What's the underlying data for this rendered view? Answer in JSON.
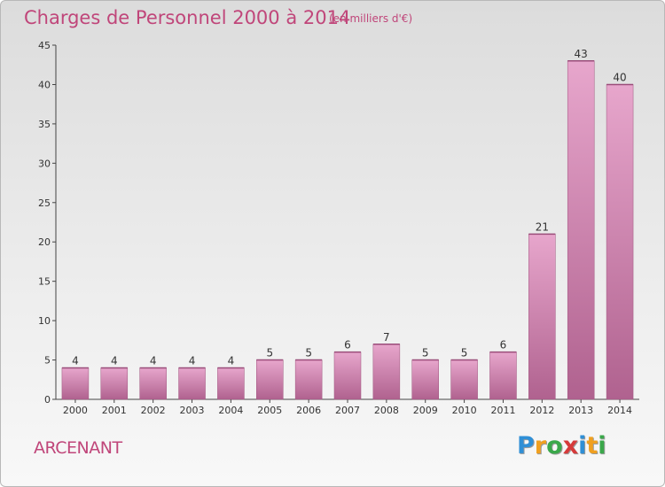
{
  "chart_data": {
    "type": "bar",
    "title": "Charges de Personnel 2000 à 2014",
    "subtitle": "(en milliers d'€)",
    "categories": [
      "2000",
      "2001",
      "2002",
      "2003",
      "2004",
      "2005",
      "2006",
      "2007",
      "2008",
      "2009",
      "2010",
      "2011",
      "2012",
      "2013",
      "2014"
    ],
    "values": [
      4,
      4,
      4,
      4,
      4,
      5,
      5,
      6,
      7,
      5,
      5,
      6,
      21,
      43,
      40
    ],
    "ylim": [
      0,
      45
    ],
    "yticks": [
      0,
      5,
      10,
      15,
      20,
      25,
      30,
      35,
      40,
      45
    ],
    "grid": false,
    "bar_color": "#d889b7"
  },
  "commune": "ARCENANT",
  "logo": {
    "letters": [
      "P",
      "r",
      "o",
      "x",
      "i",
      "t",
      "i"
    ],
    "colors": [
      "#2f8fd6",
      "#f0a020",
      "#3aa84a",
      "#d63a3a",
      "#2f8fd6",
      "#f0a020",
      "#3aa84a"
    ]
  }
}
